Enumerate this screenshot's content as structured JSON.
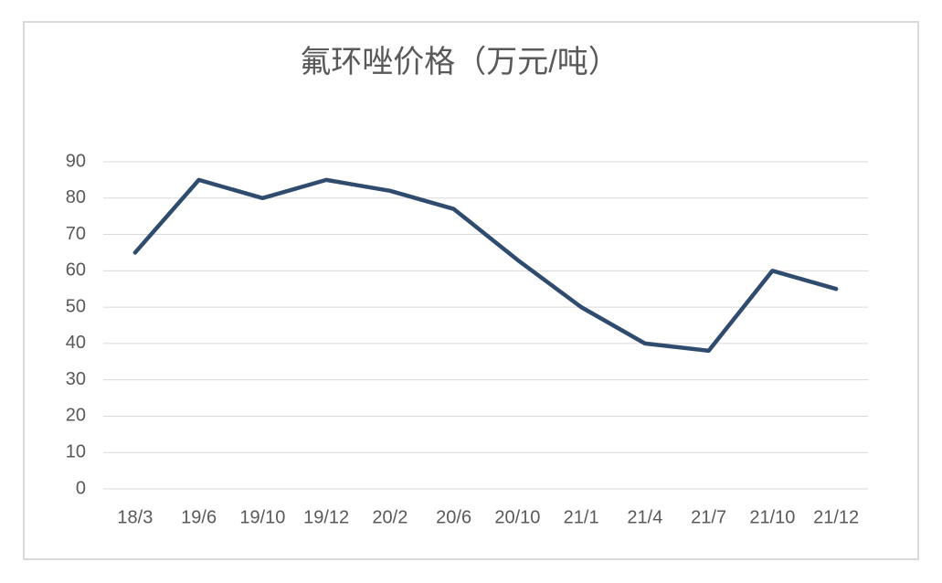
{
  "chart_data": {
    "type": "line",
    "title": "氟环唑价格（万元/吨）",
    "categories": [
      "18/3",
      "19/6",
      "19/10",
      "19/12",
      "20/2",
      "20/6",
      "20/10",
      "21/1",
      "21/4",
      "21/7",
      "21/10",
      "21/12"
    ],
    "values": [
      65,
      85,
      80,
      85,
      82,
      77,
      63,
      50,
      40,
      38,
      60,
      55
    ],
    "color": "#2f4b6e",
    "ylim": [
      0,
      90
    ],
    "yticks": [
      0,
      10,
      20,
      30,
      40,
      50,
      60,
      70,
      80,
      90
    ],
    "grid": true
  }
}
